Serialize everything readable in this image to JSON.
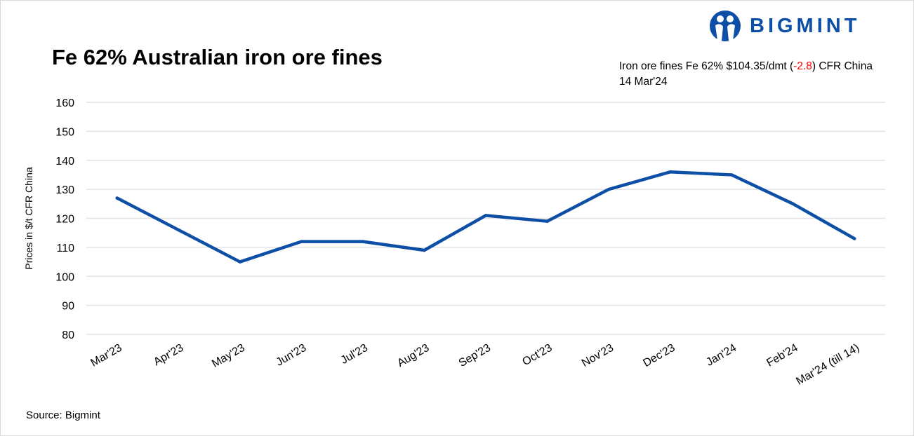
{
  "title": "Fe 62% Australian iron ore fines",
  "logo": {
    "text": "BIGMINT",
    "color": "#0d4ea6"
  },
  "note": {
    "prefix": "Iron ore fines Fe 62% $104.35/dmt (",
    "change": "-2.8",
    "suffix": ") CFR China 14 Mar'24",
    "change_color": "#ff0000"
  },
  "source": "Source: Bigmint",
  "chart_data": {
    "type": "line",
    "title": "Fe 62% Australian iron ore fines",
    "xlabel": "",
    "ylabel": "Prices in $/t CFR China",
    "ylim": [
      80,
      160
    ],
    "yticks": [
      80,
      90,
      100,
      110,
      120,
      130,
      140,
      150,
      160
    ],
    "grid": true,
    "categories": [
      "Mar'23",
      "Apr'23",
      "May'23",
      "Jun'23",
      "Jul'23",
      "Aug'23",
      "Sep'23",
      "Oct'23",
      "Nov'23",
      "Dec'23",
      "Jan'24",
      "Feb'24",
      "Mar'24 (till 14)"
    ],
    "series": [
      {
        "name": "Fe 62% Australian iron ore fines",
        "color": "#0d4ea6",
        "values": [
          127,
          116,
          105,
          112,
          112,
          109,
          121,
          119,
          130,
          136,
          135,
          125,
          113
        ]
      }
    ]
  }
}
